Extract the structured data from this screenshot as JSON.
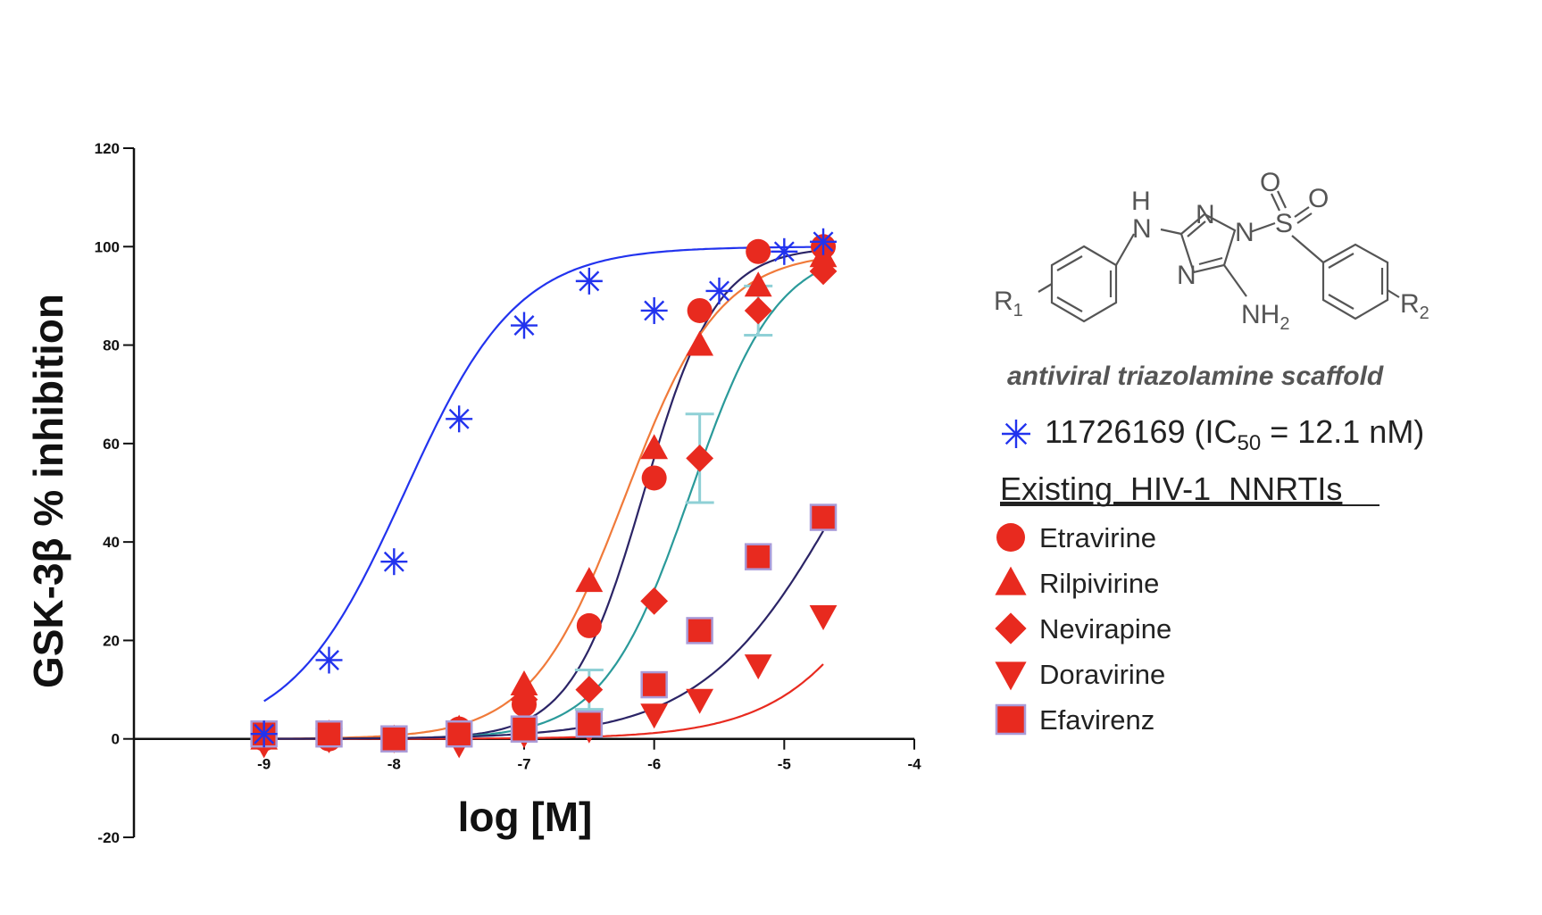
{
  "chart_data": {
    "type": "scatter",
    "xlabel": "log [M]",
    "ylabel": "GSK-3β % inhibition",
    "xlim": [
      -10,
      -4
    ],
    "ylim": [
      -20,
      120
    ],
    "x_ticks": [
      "-9",
      "-8",
      "-7",
      "-6",
      "-5",
      "-4"
    ],
    "y_ticks": [
      "-20",
      "0",
      "20",
      "40",
      "60",
      "80",
      "100",
      "120"
    ],
    "grid": false,
    "legend_position": "right",
    "series": [
      {
        "name": "11726169",
        "marker": "asterisk",
        "color": "#2233ee",
        "curve_color": "#2233ee",
        "x": [
          -9.0,
          -8.5,
          -8.0,
          -7.5,
          -7.0,
          -6.5,
          -6.0,
          -5.5,
          -5.0,
          -4.7
        ],
        "y": [
          1,
          16,
          36,
          65,
          84,
          93,
          87,
          91,
          99,
          101
        ],
        "fit": {
          "bottom": 0,
          "top": 100,
          "logIC50": -7.92,
          "hill": 1.0
        }
      },
      {
        "name": "Etravirine",
        "marker": "circle",
        "color": "#e82a1f",
        "curve_color": "#2b2466",
        "x": [
          -9.0,
          -8.5,
          -8.0,
          -7.5,
          -7.0,
          -6.5,
          -6.0,
          -5.65,
          -5.2,
          -4.7
        ],
        "y": [
          0,
          0,
          0,
          2,
          7,
          23,
          53,
          87,
          99,
          100
        ],
        "fit": {
          "bottom": 0,
          "top": 100,
          "logIC50": -6.08,
          "hill": 1.55
        }
      },
      {
        "name": "Rilpivirine",
        "marker": "triangle-up",
        "color": "#e82a1f",
        "curve_color": "#f07a3a",
        "x": [
          -9.0,
          -8.5,
          -8.0,
          -7.5,
          -7.0,
          -6.5,
          -6.0,
          -5.65,
          -5.2,
          -4.7
        ],
        "y": [
          0,
          1,
          0,
          2,
          11,
          32,
          59,
          80,
          92,
          98
        ],
        "fit": {
          "bottom": 0,
          "top": 99,
          "logIC50": -6.22,
          "hill": 1.2
        }
      },
      {
        "name": "Nevirapine",
        "marker": "diamond",
        "color": "#e82a1f",
        "curve_color": "#2a9a9a",
        "x": [
          -9.0,
          -8.5,
          -8.0,
          -7.5,
          -7.0,
          -6.5,
          -6.0,
          -5.65,
          -5.2,
          -4.7
        ],
        "y": [
          0,
          0,
          0,
          1,
          8,
          10,
          28,
          57,
          87,
          95
        ],
        "fit": {
          "bottom": 0,
          "top": 100,
          "logIC50": -5.72,
          "hill": 1.3
        },
        "error_bars": [
          {
            "x": -6.5,
            "low": 6,
            "high": 14
          },
          {
            "x": -5.65,
            "low": 48,
            "high": 66
          },
          {
            "x": -5.2,
            "low": 82,
            "high": 92
          }
        ]
      },
      {
        "name": "Doravirine",
        "marker": "triangle-down",
        "color": "#e82a1f",
        "curve_color": "#e82a1f",
        "x": [
          -9.0,
          -8.5,
          -8.0,
          -7.5,
          -7.0,
          -6.5,
          -6.0,
          -5.65,
          -5.2,
          -4.7
        ],
        "y": [
          -1,
          0,
          0,
          -1,
          1,
          2,
          5,
          8,
          15,
          25
        ],
        "fit": {
          "bottom": 0,
          "top": 100,
          "logIC50": -3.87,
          "hill": 0.9
        }
      },
      {
        "name": "Efavirenz",
        "marker": "square",
        "color": "#e82a1f",
        "curve_color": "#2b2466",
        "x": [
          -9.0,
          -8.5,
          -8.0,
          -7.5,
          -7.0,
          -6.5,
          -6.0,
          -5.65,
          -5.2,
          -4.7
        ],
        "y": [
          1,
          1,
          0,
          1,
          2,
          3,
          11,
          22,
          37,
          45
        ],
        "fit": {
          "bottom": 0,
          "top": 100,
          "logIC50": -4.53,
          "hill": 0.8
        }
      }
    ]
  },
  "legend": {
    "scaffold_caption": "antiviral triazolamine scaffold",
    "compound_entry": {
      "id": "11726169",
      "ic50_prefix": "(IC",
      "ic50_subscript": "50",
      "ic50_suffix": " = 12.1 nM)"
    },
    "section_heading": "Existing  HIV-1  NNRTIs"
  },
  "structure": {
    "atoms": {
      "H": "H",
      "N": "N",
      "O": "O",
      "S": "S",
      "NH": "NH",
      "NH2_sub": "2",
      "R": "R",
      "R1_sub": "1",
      "R2_sub": "2"
    }
  }
}
